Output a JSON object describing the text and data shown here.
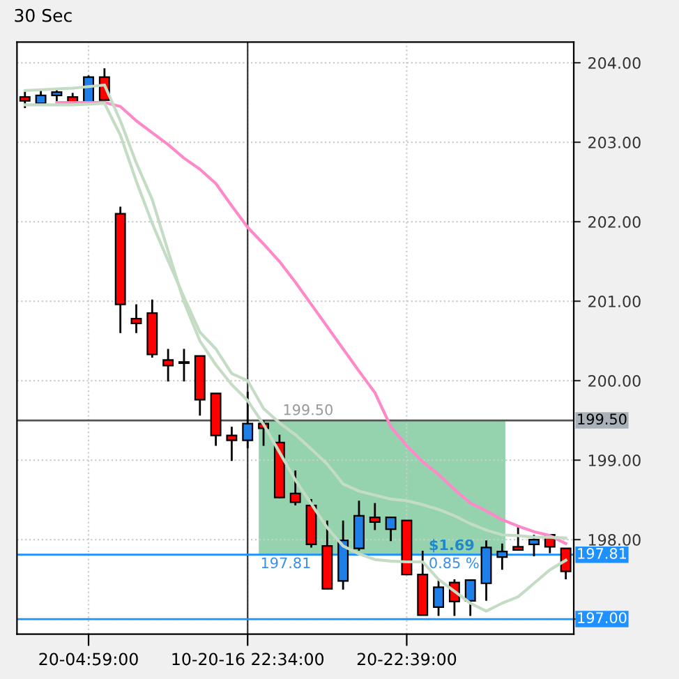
{
  "chart_data": {
    "type": "candlestick",
    "title": "30 Sec",
    "categories": [
      null,
      null,
      null,
      null,
      "20-04:59:00",
      null,
      null,
      null,
      null,
      null,
      null,
      null,
      null,
      null,
      "10-20-16 22:34:00",
      null,
      null,
      null,
      null,
      null,
      null,
      null,
      null,
      null,
      "20-22:39:00",
      null,
      null,
      null,
      null,
      null,
      null,
      null,
      null,
      null,
      null
    ],
    "ohlc": [
      [
        203.57,
        203.66,
        203.43,
        203.52
      ],
      [
        203.49,
        203.65,
        203.46,
        203.59
      ],
      [
        203.59,
        203.68,
        203.5,
        203.63
      ],
      [
        203.57,
        203.62,
        203.49,
        203.49
      ],
      [
        203.5,
        203.84,
        203.49,
        203.82
      ],
      [
        203.82,
        203.93,
        203.53,
        203.53
      ],
      [
        202.1,
        202.19,
        200.6,
        200.96
      ],
      [
        200.78,
        200.96,
        200.6,
        200.72
      ],
      [
        200.85,
        201.02,
        200.29,
        200.33
      ],
      [
        200.26,
        200.4,
        199.99,
        200.19
      ],
      [
        200.22,
        200.4,
        199.99,
        200.22
      ],
      [
        200.31,
        200.31,
        199.56,
        199.76
      ],
      [
        199.84,
        199.84,
        199.18,
        199.31
      ],
      [
        199.31,
        199.42,
        198.99,
        199.25
      ],
      [
        199.25,
        199.86,
        199.15,
        199.46
      ],
      [
        199.46,
        199.5,
        199.18,
        199.4
      ],
      [
        199.22,
        199.32,
        198.52,
        198.53
      ],
      [
        198.58,
        198.87,
        198.43,
        198.47
      ],
      [
        198.43,
        198.51,
        197.9,
        197.94
      ],
      [
        197.92,
        198.24,
        197.38,
        197.38
      ],
      [
        197.48,
        198.24,
        197.37,
        197.99
      ],
      [
        197.89,
        198.49,
        197.86,
        198.3
      ],
      [
        198.28,
        198.46,
        198.12,
        198.22
      ],
      [
        198.13,
        198.28,
        197.98,
        198.28
      ],
      [
        198.24,
        198.24,
        197.56,
        197.56
      ],
      [
        197.56,
        197.86,
        197.05,
        197.05
      ],
      [
        197.15,
        197.49,
        197.04,
        197.4
      ],
      [
        197.46,
        197.5,
        197.04,
        197.22
      ],
      [
        197.23,
        197.49,
        197.04,
        197.49
      ],
      [
        197.45,
        197.99,
        197.23,
        197.9
      ],
      [
        197.78,
        197.95,
        197.62,
        197.85
      ],
      [
        197.91,
        198.18,
        197.87,
        197.87
      ],
      [
        197.94,
        198.06,
        197.79,
        198.0
      ],
      [
        198.06,
        198.06,
        197.83,
        197.91
      ],
      [
        197.89,
        197.89,
        197.5,
        197.6
      ]
    ],
    "colors": [
      "#ff0000",
      "#1e7fe8",
      "#1e7fe8",
      "#ff0000",
      "#1e7fe8",
      "#ff0000",
      "#ff0000",
      "#ff0000",
      "#ff0000",
      "#ff0000",
      "#ff0000",
      "#ff0000",
      "#ff0000",
      "#ff0000",
      "#1e7fe8",
      "#ff0000",
      "#ff0000",
      "#ff0000",
      "#ff0000",
      "#ff0000",
      "#1e7fe8",
      "#1e7fe8",
      "#ff0000",
      "#1e7fe8",
      "#ff0000",
      "#ff0000",
      "#1e7fe8",
      "#ff0000",
      "#1e7fe8",
      "#1e7fe8",
      "#1e7fe8",
      "#ff0000",
      "#1e7fe8",
      "#ff0000",
      "#ff0000"
    ],
    "series": [
      {
        "type": "line",
        "color": "#ff88c8",
        "values": [
          null,
          null,
          203.5,
          203.5,
          203.5,
          203.5,
          203.45,
          203.27,
          203.12,
          202.97,
          202.8,
          202.66,
          202.48,
          202.2,
          201.93,
          201.72,
          201.5,
          201.24,
          200.96,
          200.68,
          200.4,
          200.12,
          199.85,
          199.42,
          199.18,
          198.98,
          198.82,
          198.63,
          198.46,
          198.36,
          198.25,
          198.17,
          198.1,
          198.05,
          197.95
        ]
      },
      {
        "type": "line",
        "color": "#c4dcc4",
        "values": [
          203.47,
          203.47,
          203.47,
          203.47,
          203.48,
          203.49,
          203.09,
          202.51,
          201.98,
          201.51,
          201.05,
          200.61,
          200.4,
          200.09,
          200.0,
          199.65,
          199.47,
          199.32,
          199.14,
          198.95,
          198.7,
          198.61,
          198.56,
          198.51,
          198.49,
          198.44,
          198.38,
          198.3,
          198.2,
          198.12,
          198.06,
          198.05,
          198.03,
          198.03,
          198.02
        ]
      },
      {
        "type": "line",
        "color": "#c4dcc4",
        "values": [
          203.65,
          203.66,
          203.67,
          203.68,
          203.7,
          203.72,
          203.27,
          202.74,
          202.28,
          201.63,
          200.99,
          200.5,
          200.2,
          199.95,
          199.75,
          199.45,
          199.1,
          198.75,
          198.45,
          198.15,
          197.92,
          197.82,
          197.75,
          197.73,
          197.72,
          197.72,
          197.5,
          197.35,
          197.2,
          197.1,
          197.2,
          197.28,
          197.45,
          197.62,
          197.74
        ]
      }
    ],
    "ylim": [
      196.81,
      204.26
    ],
    "yticks": [
      {
        "value": 197,
        "label": null
      },
      {
        "value": 198,
        "label": "198.00"
      },
      {
        "value": 199,
        "label": "199.00"
      },
      {
        "value": 200,
        "label": "200.00"
      },
      {
        "value": 201,
        "label": "201.00"
      },
      {
        "value": 202,
        "label": "202.00"
      },
      {
        "value": 203,
        "label": "203.00"
      },
      {
        "value": 204,
        "label": "204.00"
      }
    ],
    "grid": true,
    "ref_lines": [
      {
        "axis": "y",
        "value": 199.5,
        "label": "199.50",
        "color": "#555555"
      },
      {
        "axis": "y",
        "value": 197.81,
        "label": "197.81",
        "color": "#1e90ff"
      },
      {
        "axis": "y",
        "value": 197.0,
        "label": "197.00",
        "color": "#1e90ff"
      }
    ],
    "bands": [
      {
        "axis": "y",
        "from": 197.81,
        "to": 199.5,
        "color": "#8fd1aa"
      }
    ],
    "annotations": [
      {
        "text": "199.50",
        "y": 199.5
      },
      {
        "text": "197.81",
        "y": 197.81
      },
      {
        "text": "$1.69",
        "y": 197.81
      },
      {
        "text": "0.85 %",
        "y": 197.81
      }
    ]
  }
}
